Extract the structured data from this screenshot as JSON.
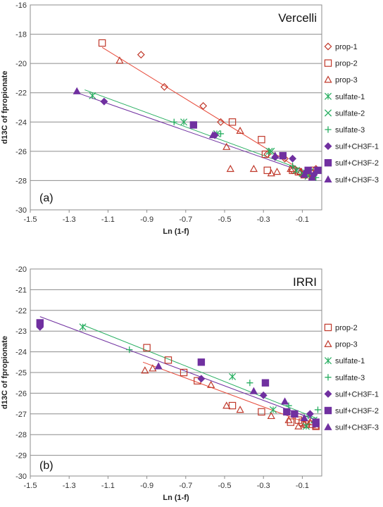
{
  "chart_data": [
    {
      "type": "scatter",
      "panel_label": "(a)",
      "site_label": "Vercelli",
      "xlabel": "Ln (1-f)",
      "ylabel": "d13C of fpropionate",
      "xlim": [
        -1.5,
        0.0
      ],
      "ylim": [
        -30,
        -16
      ],
      "xticks": [
        -1.5,
        -1.3,
        -1.1,
        -0.9,
        -0.7,
        -0.5,
        -0.3,
        -0.1
      ],
      "yticks": [
        -30,
        -28,
        -26,
        -24,
        -22,
        -20,
        -18,
        -16
      ],
      "grid": "horizontal",
      "legend_position": "right",
      "series": [
        {
          "name": "prop-1",
          "marker": "diamond-open",
          "color": "#c0392b",
          "points": [
            [
              -0.93,
              -19.4
            ],
            [
              -0.81,
              -21.6
            ],
            [
              -0.61,
              -22.9
            ],
            [
              -0.52,
              -24.0
            ],
            [
              -0.28,
              -26.2
            ],
            [
              -0.19,
              -26.5
            ],
            [
              -0.15,
              -27.3
            ],
            [
              -0.11,
              -27.5
            ],
            [
              -0.08,
              -27.6
            ],
            [
              -0.05,
              -27.5
            ],
            [
              -0.03,
              -27.2
            ]
          ]
        },
        {
          "name": "prop-2",
          "marker": "square-open",
          "color": "#c0392b",
          "points": [
            [
              -1.13,
              -18.6
            ],
            [
              -0.46,
              -24.0
            ],
            [
              -0.31,
              -25.2
            ],
            [
              -0.29,
              -26.2
            ],
            [
              -0.28,
              -27.3
            ],
            [
              -0.15,
              -27.3
            ],
            [
              -0.12,
              -27.4
            ],
            [
              -0.09,
              -27.6
            ],
            [
              -0.06,
              -27.5
            ],
            [
              -0.04,
              -27.3
            ]
          ]
        },
        {
          "name": "prop-3",
          "marker": "triangle-open",
          "color": "#c0392b",
          "points": [
            [
              -1.04,
              -19.8
            ],
            [
              -0.42,
              -24.6
            ],
            [
              -0.49,
              -25.7
            ],
            [
              -0.47,
              -27.2
            ],
            [
              -0.35,
              -27.2
            ],
            [
              -0.26,
              -27.5
            ],
            [
              -0.23,
              -27.4
            ],
            [
              -0.16,
              -27.2
            ],
            [
              -0.11,
              -27.4
            ],
            [
              -0.08,
              -27.5
            ],
            [
              -0.05,
              -27.7
            ]
          ]
        },
        {
          "name": "sulfate-1",
          "marker": "star",
          "color": "#27ae60",
          "points": [
            [
              -1.18,
              -22.2
            ],
            [
              -0.71,
              -24.0
            ],
            [
              -0.54,
              -24.8
            ],
            [
              -0.27,
              -26.0
            ],
            [
              -0.13,
              -27.3
            ],
            [
              -0.06,
              -27.4
            ]
          ]
        },
        {
          "name": "sulfate-2",
          "marker": "x",
          "color": "#27ae60",
          "points": [
            [
              -0.26,
              -26.0
            ],
            [
              -0.1,
              -27.5
            ],
            [
              -0.07,
              -27.7
            ]
          ]
        },
        {
          "name": "sulfate-3",
          "marker": "plus",
          "color": "#27ae60",
          "points": [
            [
              -0.76,
              -24.0
            ],
            [
              -0.52,
              -24.8
            ],
            [
              -0.15,
              -27.0
            ],
            [
              -0.03,
              -27.8
            ]
          ]
        },
        {
          "name": "sulf+CH3F-1",
          "marker": "diamond",
          "color": "#7030a0",
          "points": [
            [
              -1.12,
              -22.6
            ],
            [
              -0.55,
              -24.9
            ],
            [
              -0.24,
              -26.4
            ],
            [
              -0.15,
              -26.5
            ],
            [
              -0.08,
              -27.4
            ],
            [
              -0.04,
              -27.6
            ]
          ]
        },
        {
          "name": "sulf+CH3F-2",
          "marker": "square",
          "color": "#7030a0",
          "points": [
            [
              -0.66,
              -24.2
            ],
            [
              -0.2,
              -26.3
            ],
            [
              -0.07,
              -27.3
            ],
            [
              -0.02,
              -27.3
            ]
          ]
        },
        {
          "name": "sulf+CH3F-3",
          "marker": "triangle",
          "color": "#7030a0",
          "points": [
            [
              -1.26,
              -21.9
            ],
            [
              -0.56,
              -24.9
            ],
            [
              -0.24,
              -26.3
            ],
            [
              -0.09,
              -27.6
            ],
            [
              -0.05,
              -27.8
            ]
          ]
        }
      ],
      "trendlines": [
        {
          "color": "#e74c3c",
          "from": [
            -1.13,
            -18.9
          ],
          "to": [
            -0.03,
            -27.9
          ]
        },
        {
          "color": "#27ae60",
          "from": [
            -1.22,
            -21.8
          ],
          "to": [
            -0.03,
            -27.6
          ]
        },
        {
          "color": "#7030a0",
          "from": [
            -1.26,
            -22.0
          ],
          "to": [
            -0.03,
            -27.7
          ]
        }
      ]
    },
    {
      "type": "scatter",
      "panel_label": "(b)",
      "site_label": "IRRI",
      "xlabel": "Ln (1-f)",
      "ylabel": "d13C of fpropionate",
      "xlim": [
        -1.5,
        0.0
      ],
      "ylim": [
        -30,
        -20
      ],
      "xticks": [
        -1.5,
        -1.3,
        -1.1,
        -0.9,
        -0.7,
        -0.5,
        -0.3,
        -0.1
      ],
      "yticks": [
        -30,
        -29,
        -28,
        -27,
        -26,
        -25,
        -24,
        -23,
        -22,
        -21,
        -20
      ],
      "grid": "horizontal",
      "legend_position": "right",
      "series": [
        {
          "name": "prop-2",
          "marker": "square-open",
          "color": "#c0392b",
          "points": [
            [
              -0.9,
              -23.8
            ],
            [
              -0.79,
              -24.4
            ],
            [
              -0.71,
              -25.0
            ],
            [
              -0.64,
              -25.4
            ],
            [
              -0.46,
              -26.6
            ],
            [
              -0.31,
              -26.9
            ],
            [
              -0.16,
              -27.4
            ],
            [
              -0.12,
              -27.3
            ],
            [
              -0.1,
              -27.4
            ],
            [
              -0.08,
              -27.5
            ],
            [
              -0.05,
              -27.5
            ],
            [
              -0.03,
              -27.6
            ]
          ]
        },
        {
          "name": "prop-3",
          "marker": "triangle-open",
          "color": "#c0392b",
          "points": [
            [
              -0.91,
              -24.9
            ],
            [
              -0.87,
              -24.8
            ],
            [
              -0.57,
              -25.6
            ],
            [
              -0.49,
              -26.6
            ],
            [
              -0.42,
              -26.8
            ],
            [
              -0.26,
              -27.1
            ],
            [
              -0.17,
              -27.3
            ],
            [
              -0.12,
              -27.6
            ],
            [
              -0.09,
              -27.5
            ],
            [
              -0.06,
              -27.4
            ],
            [
              -0.03,
              -27.6
            ]
          ]
        },
        {
          "name": "sulfate-1",
          "marker": "star",
          "color": "#27ae60",
          "points": [
            [
              -1.23,
              -22.8
            ],
            [
              -0.46,
              -25.2
            ],
            [
              -0.25,
              -26.8
            ],
            [
              -0.08,
              -27.6
            ],
            [
              -0.04,
              -27.3
            ]
          ]
        },
        {
          "name": "sulfate-3",
          "marker": "plus",
          "color": "#27ae60",
          "points": [
            [
              -0.99,
              -23.9
            ],
            [
              -0.37,
              -25.5
            ],
            [
              -0.17,
              -26.6
            ],
            [
              -0.07,
              -27.1
            ],
            [
              -0.02,
              -26.8
            ]
          ]
        },
        {
          "name": "sulf+CH3F-1",
          "marker": "diamond",
          "color": "#7030a0",
          "points": [
            [
              -1.45,
              -22.8
            ],
            [
              -0.62,
              -25.3
            ],
            [
              -0.3,
              -26.1
            ],
            [
              -0.06,
              -27.0
            ]
          ]
        },
        {
          "name": "sulf+CH3F-2",
          "marker": "square",
          "color": "#7030a0",
          "points": [
            [
              -1.45,
              -22.6
            ],
            [
              -0.62,
              -24.5
            ],
            [
              -0.29,
              -25.5
            ],
            [
              -0.18,
              -26.9
            ],
            [
              -0.14,
              -27.0
            ],
            [
              -0.03,
              -27.4
            ]
          ]
        },
        {
          "name": "sulf+CH3F-3",
          "marker": "triangle",
          "color": "#7030a0",
          "points": [
            [
              -0.84,
              -24.7
            ],
            [
              -0.35,
              -25.9
            ],
            [
              -0.19,
              -26.4
            ],
            [
              -0.09,
              -27.2
            ],
            [
              -0.03,
              -27.5
            ]
          ]
        }
      ],
      "trendlines": [
        {
          "color": "#e74c3c",
          "from": [
            -0.92,
            -24.5
          ],
          "to": [
            -0.03,
            -27.6
          ]
        },
        {
          "color": "#27ae60",
          "from": [
            -1.23,
            -22.7
          ],
          "to": [
            -0.03,
            -27.2
          ]
        },
        {
          "color": "#7030a0",
          "from": [
            -1.45,
            -22.3
          ],
          "to": [
            -0.03,
            -27.3
          ]
        }
      ]
    }
  ]
}
